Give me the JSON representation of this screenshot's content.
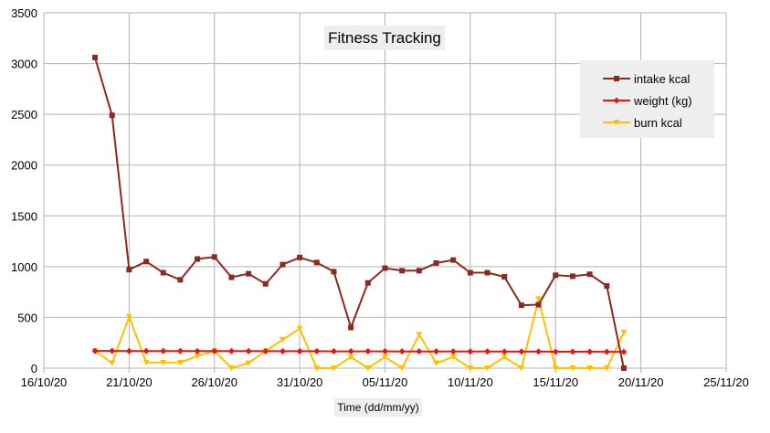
{
  "chart_data": {
    "type": "line",
    "title": "Fitness Tracking",
    "xlabel": "Time (dd/mm/yy)",
    "ylabel": "",
    "ylim": [
      0,
      3500
    ],
    "y_ticks": [
      0,
      500,
      1000,
      1500,
      2000,
      2500,
      3000,
      3500
    ],
    "xlim": [
      "2020-10-16",
      "2020-11-25"
    ],
    "x_tick_labels": [
      "16/10/20",
      "21/10/20",
      "26/10/20",
      "31/10/20",
      "05/11/20",
      "10/11/20",
      "15/11/20",
      "20/11/20",
      "25/11/20"
    ],
    "grid": true,
    "legend_position": "top-right",
    "x": [
      "2020-10-19",
      "2020-10-20",
      "2020-10-21",
      "2020-10-22",
      "2020-10-23",
      "2020-10-24",
      "2020-10-25",
      "2020-10-26",
      "2020-10-27",
      "2020-10-28",
      "2020-10-29",
      "2020-10-30",
      "2020-10-31",
      "2020-11-01",
      "2020-11-02",
      "2020-11-03",
      "2020-11-04",
      "2020-11-05",
      "2020-11-06",
      "2020-11-07",
      "2020-11-08",
      "2020-11-09",
      "2020-11-10",
      "2020-11-11",
      "2020-11-12",
      "2020-11-13",
      "2020-11-14",
      "2020-11-15",
      "2020-11-16",
      "2020-11-17",
      "2020-11-18",
      "2020-11-19"
    ],
    "series": [
      {
        "name": "intake kcal",
        "color": "#8b2a1e",
        "marker": "square",
        "values": [
          3060,
          2490,
          970,
          1050,
          940,
          870,
          1075,
          1095,
          895,
          930,
          830,
          1020,
          1090,
          1040,
          950,
          400,
          840,
          985,
          960,
          960,
          1035,
          1065,
          940,
          940,
          900,
          620,
          625,
          915,
          905,
          925,
          810,
          0
        ]
      },
      {
        "name": "weight (kg)",
        "color": "#ee1111",
        "marker": "diamond",
        "values": [
          170,
          170,
          169,
          169,
          169,
          169,
          168,
          168,
          168,
          168,
          167,
          167,
          167,
          167,
          166,
          166,
          166,
          166,
          165,
          165,
          165,
          164,
          164,
          164,
          163,
          163,
          163,
          162,
          162,
          162,
          161,
          161
        ]
      },
      {
        "name": "burn kcal",
        "color": "#ffc000",
        "marker": "triangle-down",
        "values": [
          170,
          50,
          505,
          55,
          55,
          55,
          120,
          170,
          0,
          50,
          170,
          280,
          390,
          0,
          0,
          110,
          0,
          110,
          0,
          330,
          50,
          110,
          0,
          0,
          110,
          0,
          680,
          0,
          0,
          0,
          0,
          350
        ]
      }
    ]
  }
}
